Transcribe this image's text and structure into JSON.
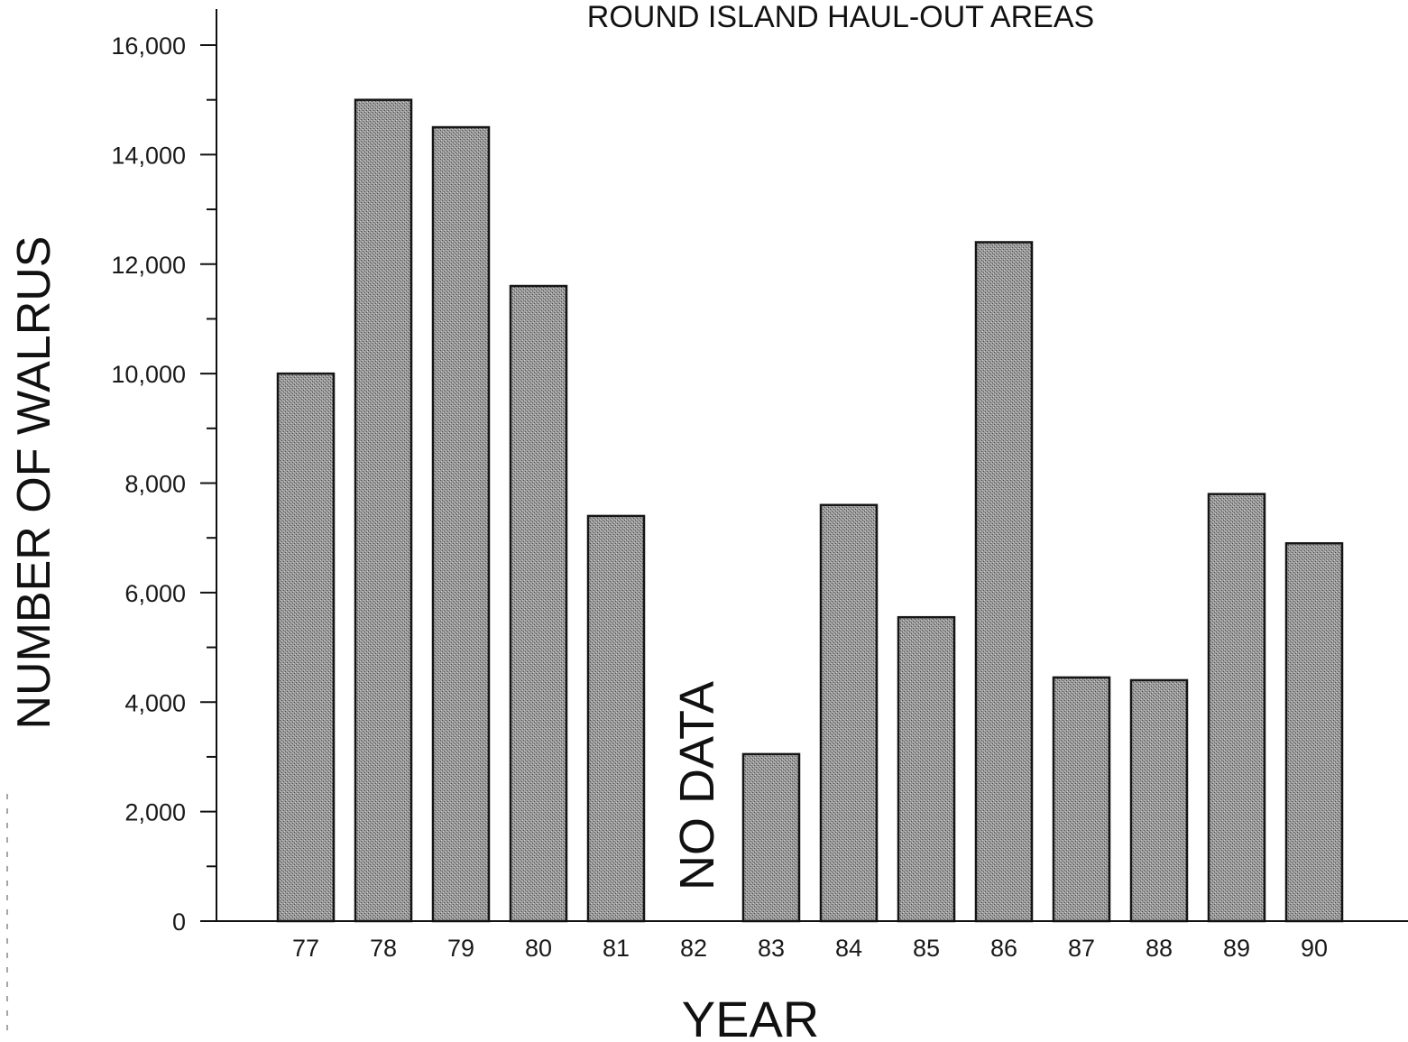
{
  "chart_data": {
    "type": "bar",
    "title": "ROUND ISLAND HAUL-OUT AREAS",
    "xlabel": "YEAR",
    "ylabel": "NUMBER OF WALRUS",
    "categories": [
      "77",
      "78",
      "79",
      "80",
      "81",
      "82",
      "83",
      "84",
      "85",
      "86",
      "87",
      "88",
      "89",
      "90"
    ],
    "values": [
      10000,
      15000,
      14500,
      11600,
      7400,
      null,
      3050,
      7600,
      5550,
      12400,
      4450,
      4400,
      7800,
      6900
    ],
    "ylim": [
      0,
      16000
    ],
    "yticks": [
      0,
      2000,
      4000,
      6000,
      8000,
      10000,
      12000,
      14000,
      16000
    ],
    "ytick_labels": [
      "0",
      "2,000",
      "4,000",
      "6,000",
      "8,000",
      "10,000",
      "12,000",
      "14,000",
      "16,000"
    ],
    "annotations": [
      {
        "category": "82",
        "text": "NO DATA"
      }
    ],
    "grid": false,
    "bar_color": "#8a8a8a"
  }
}
